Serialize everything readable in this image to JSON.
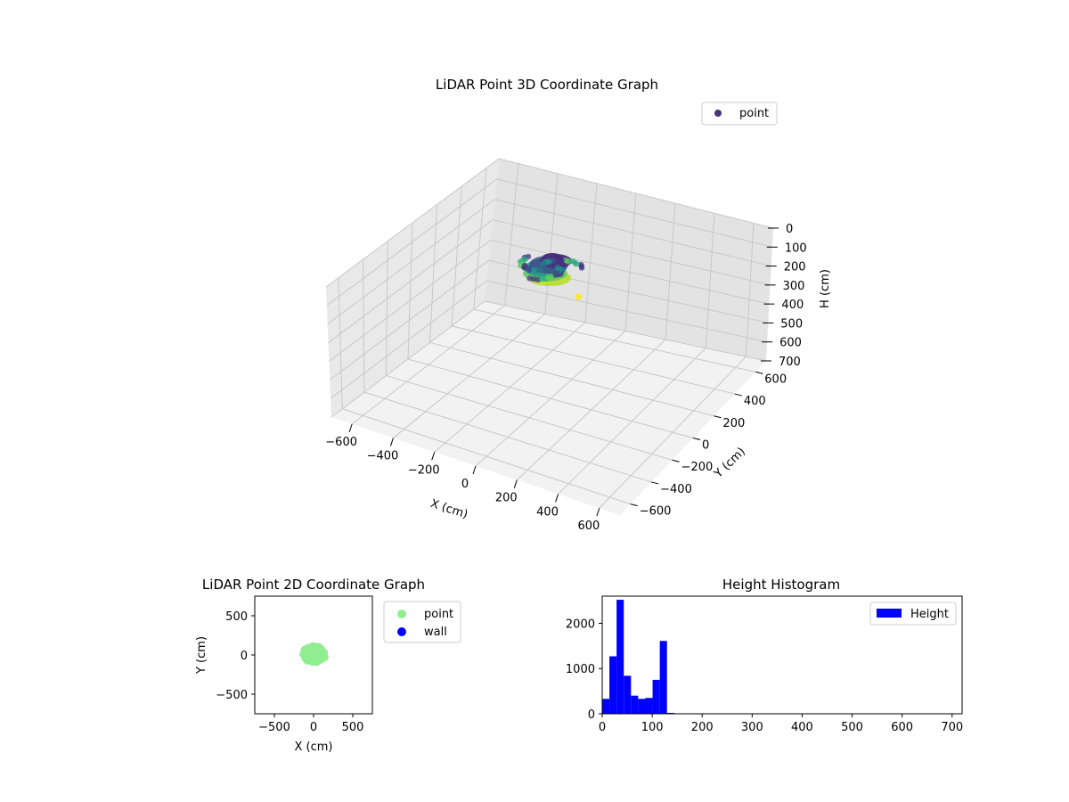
{
  "chart_data": [
    {
      "type": "scatter3d",
      "title": "LiDAR Point 3D Coordinate Graph",
      "xlabel": "X (cm)",
      "ylabel": "Y (cm)",
      "zlabel": "H (cm)",
      "xlim": [
        -700,
        700
      ],
      "ylim": [
        -700,
        700
      ],
      "zlim": [
        0,
        700
      ],
      "z_inverted": true,
      "xticks": [
        -600,
        -400,
        -200,
        0,
        200,
        400,
        600
      ],
      "yticks": [
        -600,
        -400,
        -200,
        0,
        200,
        400,
        600
      ],
      "zticks": [
        0,
        100,
        200,
        300,
        400,
        500,
        600,
        700
      ],
      "colormap": "viridis",
      "grid": true,
      "legend": {
        "entries": [
          "point"
        ],
        "location": "upper right"
      },
      "series": [
        {
          "name": "point",
          "color": "#46337e",
          "cluster": {
            "x_range": [
              -150,
              150
            ],
            "y_range": [
              -150,
              150
            ],
            "h_range": [
              0,
              150
            ]
          },
          "outlier": {
            "x": 100,
            "y": -100,
            "h": 690
          }
        }
      ]
    },
    {
      "type": "scatter",
      "title": "LiDAR Point 2D Coordinate Graph",
      "xlabel": "X (cm)",
      "ylabel": "Y (cm)",
      "xlim": [
        -750,
        750
      ],
      "ylim": [
        -750,
        750
      ],
      "xticks": [
        -500,
        0,
        500
      ],
      "yticks": [
        -500,
        0,
        500
      ],
      "legend": {
        "location": "outside right"
      },
      "series": [
        {
          "name": "point",
          "color": "#90ee90",
          "cluster": {
            "x_range": [
              -150,
              150
            ],
            "y_range": [
              -100,
              130
            ]
          }
        },
        {
          "name": "wall",
          "color": "#0000ff",
          "points": []
        }
      ]
    },
    {
      "type": "bar",
      "title": "Height Histogram",
      "xlabel": "",
      "ylabel": "",
      "xlim": [
        0,
        720
      ],
      "ylim": [
        0,
        2600
      ],
      "xticks": [
        0,
        100,
        200,
        300,
        400,
        500,
        600,
        700
      ],
      "yticks": [
        0,
        1000,
        2000
      ],
      "bin_width": 14.4,
      "bins": [
        {
          "x": 0,
          "value": 330
        },
        {
          "x": 14.4,
          "value": 1270
        },
        {
          "x": 28.8,
          "value": 2520
        },
        {
          "x": 43.2,
          "value": 840
        },
        {
          "x": 57.6,
          "value": 400
        },
        {
          "x": 72.0,
          "value": 330
        },
        {
          "x": 86.4,
          "value": 350
        },
        {
          "x": 100.8,
          "value": 750
        },
        {
          "x": 115.2,
          "value": 1610
        },
        {
          "x": 129.6,
          "value": 20
        }
      ],
      "series": [
        {
          "name": "Height",
          "color": "#0000ff"
        }
      ],
      "legend": {
        "entries": [
          "Height"
        ],
        "location": "upper right"
      }
    }
  ]
}
